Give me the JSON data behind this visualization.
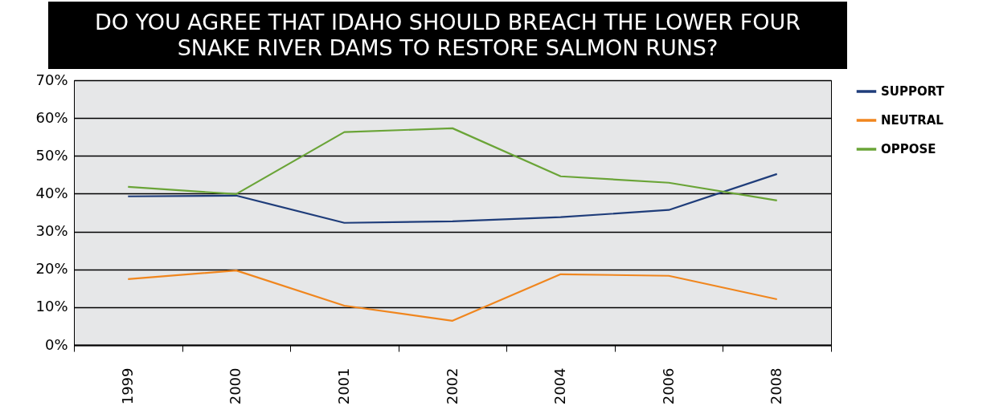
{
  "chart_data": {
    "type": "line",
    "title": "DO YOU AGREE THAT IDAHO SHOULD BREACH THE LOWER FOUR SNAKE RIVER DAMS TO RESTORE SALMON RUNS?",
    "categories": [
      "1999",
      "2000",
      "2001",
      "2002",
      "2004",
      "2006",
      "2008"
    ],
    "series": [
      {
        "name": "SUPPORT",
        "color": "#1f3d7a",
        "values": [
          39.3,
          39.5,
          32.3,
          32.7,
          33.8,
          35.7,
          45.2
        ]
      },
      {
        "name": "NEUTRAL",
        "color": "#f0861e",
        "values": [
          17.4,
          19.7,
          10.4,
          6.4,
          18.7,
          18.3,
          12.1
        ]
      },
      {
        "name": "OPPOSE",
        "color": "#6aa437",
        "values": [
          41.8,
          39.9,
          56.3,
          57.3,
          44.6,
          42.9,
          38.2
        ]
      }
    ],
    "ylim": [
      0,
      70
    ],
    "yticks": [
      {
        "value": 0,
        "label": "0%"
      },
      {
        "value": 10,
        "label": "10%"
      },
      {
        "value": 20,
        "label": "20%"
      },
      {
        "value": 30,
        "label": "30%"
      },
      {
        "value": 40,
        "label": "40%"
      },
      {
        "value": 50,
        "label": "50%"
      },
      {
        "value": 60,
        "label": "60%"
      },
      {
        "value": 70,
        "label": "70%"
      }
    ],
    "grid": "y",
    "legend": "right",
    "marker": "none",
    "line_style": "solid"
  }
}
